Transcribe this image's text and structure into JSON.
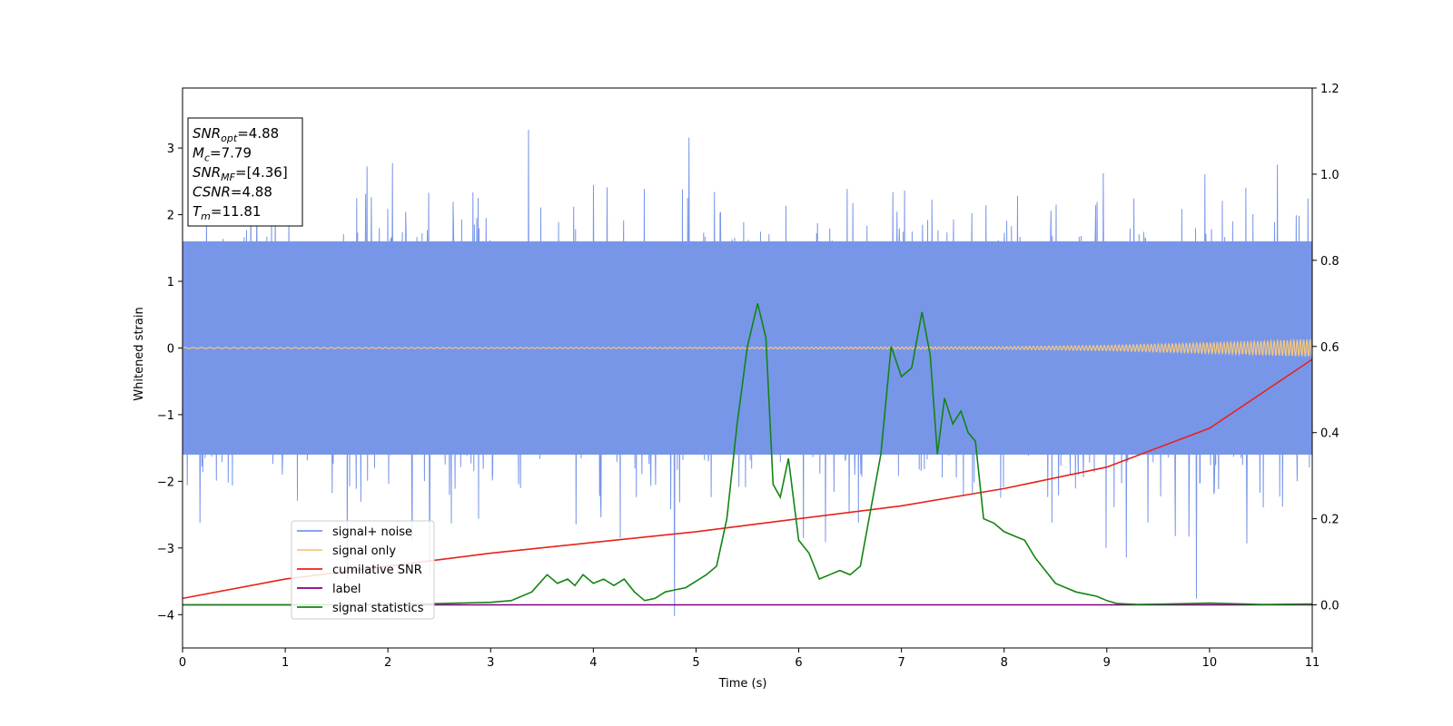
{
  "chart_data": {
    "type": "line",
    "xlabel": "Time (s)",
    "ylabel": "Whitened strain",
    "xlim": [
      0,
      11
    ],
    "ylim_left": [
      -4.5,
      3.9
    ],
    "ylim_right": [
      -0.1,
      1.2
    ],
    "x_ticks": [
      "0",
      "1",
      "2",
      "3",
      "4",
      "5",
      "6",
      "7",
      "8",
      "9",
      "10",
      "11"
    ],
    "y_ticks_left": [
      "3",
      "2",
      "1",
      "0",
      "−1",
      "−2",
      "−3",
      "−4"
    ],
    "y_ticks_right": [
      "1.2",
      "1.0",
      "0.8",
      "0.6",
      "0.4",
      "0.2",
      "0.0"
    ],
    "info_box": {
      "lines": [
        {
          "main": "SNR",
          "sub": "opt",
          "value": "=4.88"
        },
        {
          "main": "M",
          "sub": "c",
          "value": "=7.79"
        },
        {
          "main": "SNR",
          "sub": "MF",
          "value": "=[4.36]"
        },
        {
          "main": "CSNR",
          "sub": "",
          "value": "=4.88"
        },
        {
          "main": "T",
          "sub": "m",
          "value": "=11.81"
        }
      ]
    },
    "legend": {
      "placement": "lower-left",
      "entries": [
        {
          "label": "signal+ noise",
          "color": "#7896e8"
        },
        {
          "label": "signal only",
          "color": "#f5c880"
        },
        {
          "label": "cumilative SNR",
          "color": "#e8211a"
        },
        {
          "label": "label",
          "color": "#800080"
        },
        {
          "label": "signal statistics",
          "color": "#138413"
        }
      ]
    },
    "series": [
      {
        "name": "signal+ noise",
        "axis": "left",
        "color": "#7896e8",
        "band": {
          "lower": -1.6,
          "upper": 1.6,
          "noise_std": 1.0
        }
      },
      {
        "name": "signal only",
        "axis": "left",
        "color": "#f5c880",
        "amplitude": {
          "x": [
            0,
            5,
            8,
            9,
            10,
            11
          ],
          "y": [
            0.01,
            0.01,
            0.02,
            0.04,
            0.08,
            0.13
          ]
        }
      },
      {
        "name": "cumilative SNR",
        "axis": "right",
        "color": "#e8211a",
        "x": [
          0,
          1,
          2,
          3,
          4,
          5,
          6,
          7,
          8,
          9,
          10,
          11
        ],
        "y": [
          0.015,
          0.06,
          0.09,
          0.12,
          0.145,
          0.17,
          0.2,
          0.23,
          0.27,
          0.32,
          0.41,
          0.57
        ]
      },
      {
        "name": "label",
        "axis": "right",
        "color": "#800080",
        "x": [
          0,
          11
        ],
        "y": [
          0.0,
          0.0
        ]
      },
      {
        "name": "signal statistics",
        "axis": "right",
        "color": "#138413",
        "x": [
          0,
          1,
          2,
          2.5,
          3,
          3.2,
          3.4,
          3.55,
          3.65,
          3.75,
          3.82,
          3.9,
          4.0,
          4.1,
          4.2,
          4.3,
          4.4,
          4.5,
          4.6,
          4.7,
          4.8,
          4.9,
          5.0,
          5.1,
          5.2,
          5.3,
          5.4,
          5.5,
          5.6,
          5.68,
          5.75,
          5.82,
          5.9,
          6.0,
          6.1,
          6.2,
          6.3,
          6.4,
          6.5,
          6.6,
          6.7,
          6.8,
          6.9,
          7.0,
          7.1,
          7.2,
          7.28,
          7.35,
          7.42,
          7.5,
          7.58,
          7.65,
          7.72,
          7.8,
          7.9,
          8.0,
          8.1,
          8.2,
          8.3,
          8.4,
          8.5,
          8.6,
          8.7,
          8.8,
          8.9,
          9.0,
          9.1,
          9.3,
          9.6,
          10.0,
          10.5,
          11.0
        ],
        "y": [
          0.0,
          0.0,
          0.0,
          0.003,
          0.006,
          0.01,
          0.03,
          0.07,
          0.05,
          0.06,
          0.045,
          0.07,
          0.05,
          0.06,
          0.045,
          0.06,
          0.03,
          0.01,
          0.015,
          0.03,
          0.035,
          0.04,
          0.055,
          0.07,
          0.09,
          0.2,
          0.42,
          0.6,
          0.7,
          0.62,
          0.28,
          0.25,
          0.34,
          0.15,
          0.12,
          0.06,
          0.07,
          0.08,
          0.07,
          0.09,
          0.22,
          0.35,
          0.6,
          0.53,
          0.55,
          0.68,
          0.58,
          0.35,
          0.48,
          0.42,
          0.45,
          0.4,
          0.38,
          0.2,
          0.19,
          0.17,
          0.16,
          0.15,
          0.11,
          0.08,
          0.05,
          0.04,
          0.03,
          0.025,
          0.02,
          0.01,
          0.003,
          0.001,
          0.002,
          0.004,
          0.001,
          0.002
        ]
      }
    ]
  }
}
